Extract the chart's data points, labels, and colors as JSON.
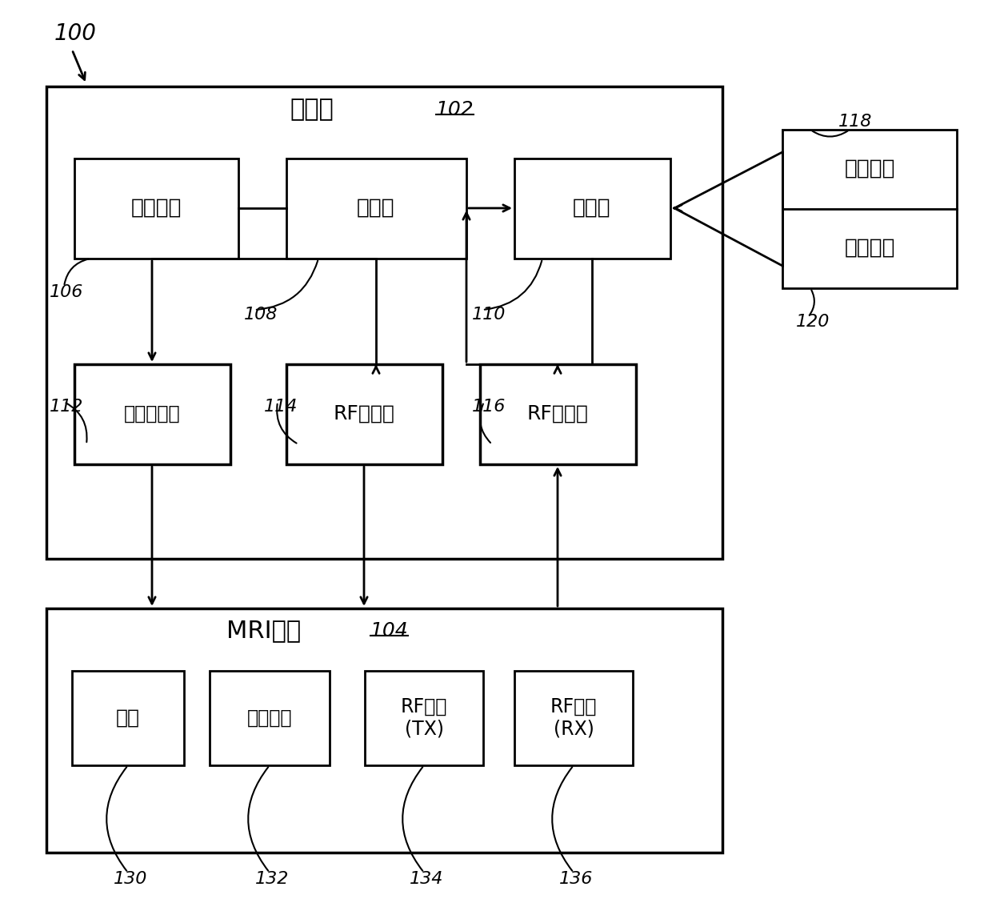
{
  "fig_width": 12.4,
  "fig_height": 11.43,
  "bg_color": "#ffffff",
  "label_100": "100",
  "label_102": "102",
  "label_104": "104",
  "label_106": "106",
  "label_108": "108",
  "label_110": "110",
  "label_112": "112",
  "label_114": "114",
  "label_116": "116",
  "label_118": "118",
  "label_120": "120",
  "label_130": "130",
  "label_132": "132",
  "label_134": "134",
  "label_136": "136",
  "text_computer": "计算机",
  "text_mri": "MRI装置",
  "text_ui": "用户界面",
  "text_processor": "处理器",
  "text_memory": "存储器",
  "text_control": "控制程序",
  "text_analysis": "分析程序",
  "text_gradient_ctrl": "梯度控制器",
  "text_rf_ctrl": "RF控制器",
  "text_rf_recv": "RF接收器",
  "text_magnet": "磁体",
  "text_gradient_coil": "梯度线圈",
  "text_rf_coil_tx": "RF线圈\n(TX)",
  "text_rf_coil_rx": "RF线圈\n(RX)"
}
